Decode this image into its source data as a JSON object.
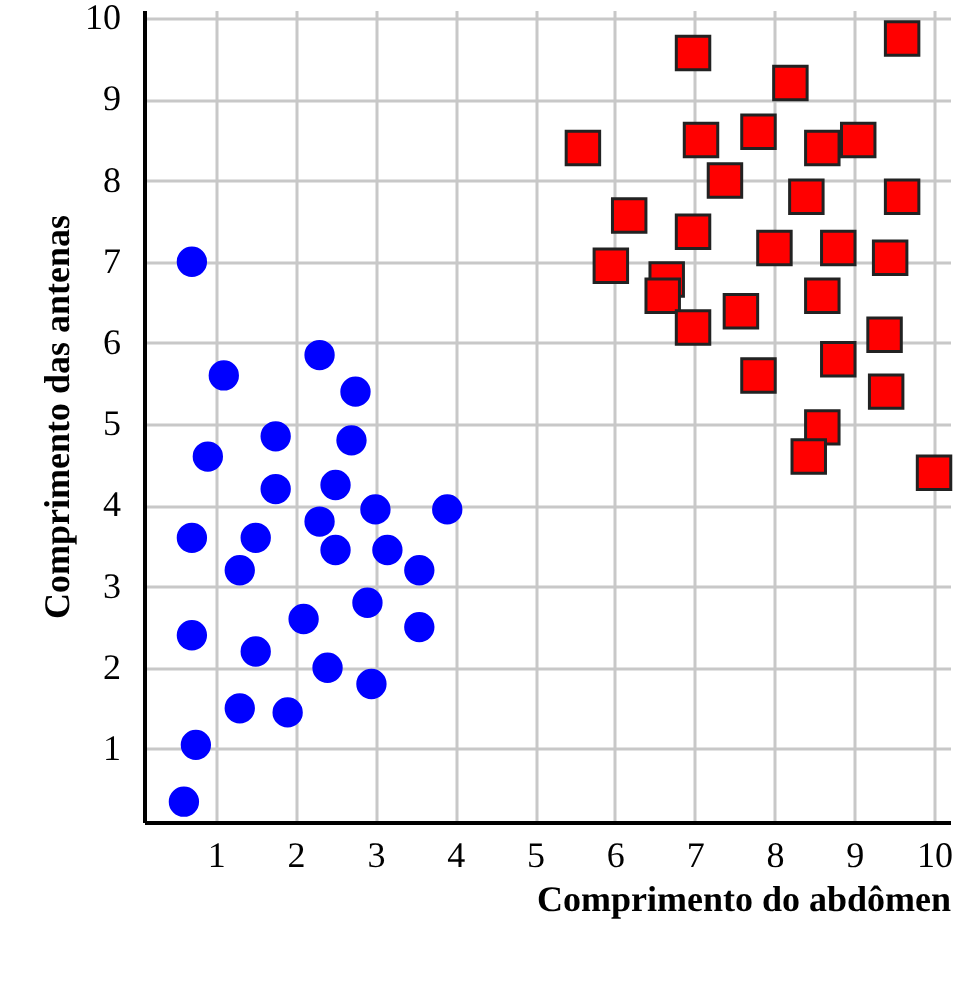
{
  "chart_data": {
    "type": "scatter",
    "xlabel": "Comprimento do abdômen",
    "ylabel": "Comprimento das antenas",
    "xlim": [
      0.1,
      10.2
    ],
    "ylim": [
      0.1,
      10.1
    ],
    "xticks": [
      1,
      2,
      3,
      4,
      5,
      6,
      7,
      8,
      9,
      10
    ],
    "yticks": [
      1,
      2,
      3,
      4,
      5,
      6,
      7,
      8,
      9,
      10
    ],
    "grid": true,
    "series": [
      {
        "color": "#0000ff",
        "marker": "circle",
        "x": [
          0.7,
          1.1,
          2.3,
          2.75,
          0.9,
          1.75,
          2.7,
          1.75,
          2.5,
          3.0,
          3.9,
          2.3,
          0.7,
          1.5,
          2.5,
          3.15,
          1.3,
          3.55,
          2.1,
          2.9,
          3.55,
          0.7,
          1.5,
          2.4,
          2.95,
          1.3,
          1.9,
          0.75,
          0.6
        ],
        "values": [
          7.0,
          5.6,
          5.85,
          5.4,
          4.6,
          4.85,
          4.8,
          4.2,
          4.25,
          3.95,
          3.95,
          3.8,
          3.6,
          3.6,
          3.45,
          3.45,
          3.2,
          3.2,
          2.6,
          2.8,
          2.5,
          2.4,
          2.2,
          2.0,
          1.8,
          1.5,
          1.45,
          1.05,
          0.35
        ]
      },
      {
        "color": "#ff0000",
        "marker": "square",
        "x": [
          6.98,
          9.6,
          8.2,
          5.6,
          7.08,
          7.8,
          8.6,
          9.05,
          7.38,
          8.4,
          9.6,
          6.18,
          6.98,
          8.0,
          8.8,
          9.45,
          5.95,
          6.65,
          6.6,
          8.6,
          7.58,
          6.98,
          9.38,
          8.8,
          7.8,
          9.4,
          8.6,
          8.43,
          10.0
        ],
        "values": [
          9.57,
          9.75,
          9.2,
          8.4,
          8.5,
          8.6,
          8.4,
          8.5,
          8.0,
          7.8,
          7.8,
          7.57,
          7.37,
          7.17,
          7.17,
          7.05,
          6.95,
          6.78,
          6.58,
          6.58,
          6.39,
          6.19,
          6.1,
          5.8,
          5.6,
          5.4,
          4.96,
          4.6,
          4.4
        ]
      }
    ]
  }
}
